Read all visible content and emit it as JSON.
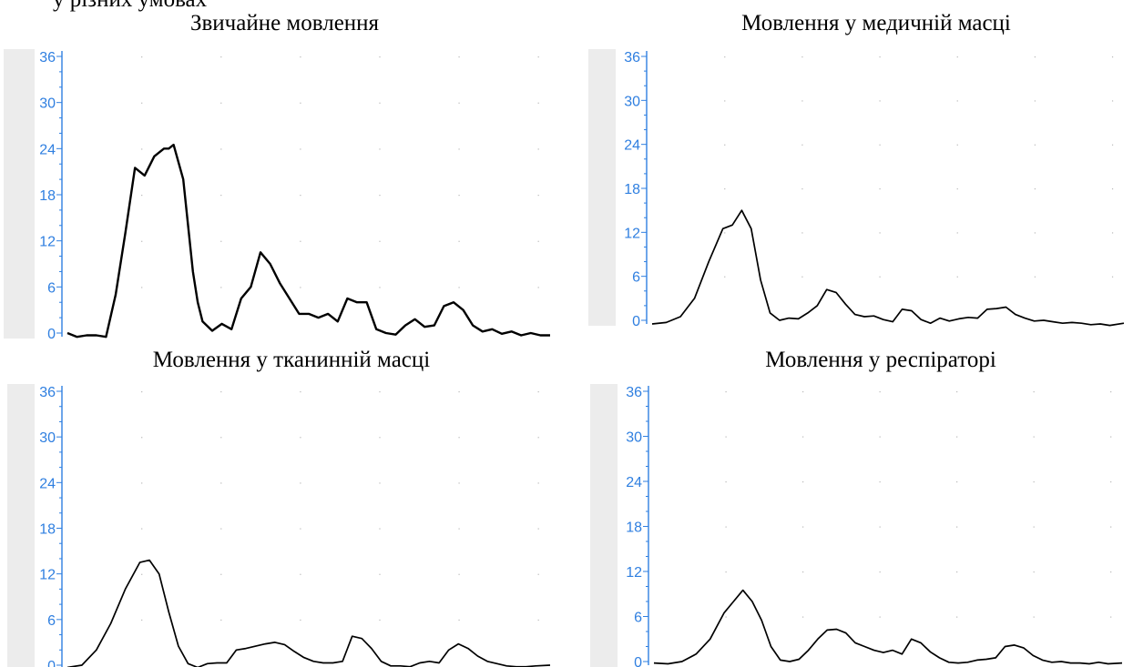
{
  "page": {
    "caption": "у різних умовах"
  },
  "colors": {
    "axis": "#2f7fe0",
    "gutter": "#ececec",
    "grid_dot": "#b8b8b8",
    "line": "#000000"
  },
  "chart_data": [
    {
      "type": "line",
      "title": "Звичайне мовлення",
      "xlabel": "",
      "ylabel": "",
      "ylim": [
        0,
        36
      ],
      "yticks": [
        0,
        6,
        12,
        18,
        24,
        30,
        36
      ],
      "grid": true,
      "x": [
        0,
        2,
        4,
        6,
        8,
        10,
        12,
        14,
        16,
        18,
        20,
        21,
        22,
        24,
        26,
        27,
        28,
        30,
        32,
        34,
        36,
        38,
        40,
        42,
        44,
        46,
        48,
        50,
        52,
        54,
        56,
        58,
        60,
        62,
        64,
        66,
        68,
        70,
        72,
        74,
        76,
        78,
        80,
        82,
        84,
        86,
        88,
        90,
        92,
        94,
        96,
        98,
        100
      ],
      "series": [
        {
          "values": [
            0,
            -0.5,
            -0.3,
            -0.3,
            -0.5,
            5,
            13,
            21.5,
            20.5,
            23,
            24,
            24,
            24.5,
            20,
            8,
            4,
            1.5,
            0.3,
            1.2,
            0.5,
            4.5,
            6,
            10.5,
            9,
            6.5,
            4.5,
            2.5,
            2.5,
            2,
            2.5,
            1.5,
            4.5,
            4,
            4,
            0.5,
            0,
            -0.2,
            1,
            1.8,
            0.8,
            1,
            3.5,
            4,
            3,
            1,
            0.2,
            0.5,
            -0.1,
            0.2,
            -0.3,
            0,
            -0.3,
            -0.3
          ]
        }
      ]
    },
    {
      "type": "line",
      "title": "Мовлення у медичній масці",
      "xlabel": "",
      "ylabel": "",
      "ylim": [
        0,
        36
      ],
      "yticks": [
        0,
        6,
        12,
        18,
        24,
        30,
        36
      ],
      "grid": true,
      "x": [
        0,
        3,
        6,
        9,
        12,
        15,
        17,
        19,
        21,
        23,
        25,
        27,
        29,
        31,
        33,
        35,
        37,
        39,
        41,
        43,
        45,
        47,
        49,
        51,
        53,
        55,
        57,
        59,
        61,
        63,
        65,
        67,
        69,
        71,
        73,
        75,
        77,
        79,
        81,
        83,
        85,
        87,
        89,
        91,
        93,
        95,
        97,
        100
      ],
      "series": [
        {
          "values": [
            -0.5,
            -0.3,
            0.5,
            3,
            8,
            12.5,
            13,
            15,
            12.5,
            5.5,
            1,
            0,
            0.3,
            0.2,
            1,
            2,
            4.2,
            3.8,
            2.2,
            0.8,
            0.5,
            0.6,
            0.1,
            -0.2,
            1.5,
            1.3,
            0.1,
            -0.4,
            0.3,
            -0.1,
            0.2,
            0.4,
            0.3,
            1.5,
            1.6,
            1.8,
            0.8,
            0.3,
            -0.1,
            0,
            -0.2,
            -0.4,
            -0.3,
            -0.4,
            -0.6,
            -0.5,
            -0.7,
            -0.4
          ]
        }
      ]
    },
    {
      "type": "line",
      "title": "Мовлення у тканинній масці",
      "xlabel": "",
      "ylabel": "",
      "ylim": [
        0,
        36
      ],
      "yticks": [
        0,
        6,
        12,
        18,
        24,
        30,
        36
      ],
      "grid": true,
      "x": [
        0,
        3,
        6,
        9,
        12,
        15,
        17,
        19,
        21,
        23,
        25,
        27,
        29,
        31,
        33,
        35,
        37,
        39,
        41,
        43,
        45,
        47,
        49,
        51,
        53,
        55,
        57,
        59,
        61,
        63,
        65,
        67,
        69,
        71,
        73,
        75,
        77,
        79,
        81,
        83,
        85,
        87,
        89,
        91,
        93,
        95,
        97,
        100
      ],
      "series": [
        {
          "values": [
            -0.3,
            0,
            2,
            5.5,
            10,
            13.5,
            13.8,
            12,
            7,
            2.5,
            0.2,
            -0.3,
            0.2,
            0.3,
            0.3,
            2,
            2.2,
            2.5,
            2.8,
            3,
            2.7,
            1.8,
            1,
            0.5,
            0.3,
            0.3,
            0.5,
            3.8,
            3.5,
            2.2,
            0.5,
            -0.1,
            -0.1,
            -0.2,
            0.3,
            0.5,
            0.3,
            2,
            2.8,
            2.2,
            1.2,
            0.5,
            0.2,
            -0.1,
            -0.2,
            -0.2,
            -0.1,
            0
          ]
        }
      ]
    },
    {
      "type": "line",
      "title": "Мовлення у респіраторі",
      "xlabel": "",
      "ylabel": "",
      "ylim": [
        0,
        36
      ],
      "yticks": [
        0,
        6,
        12,
        18,
        24,
        30,
        36
      ],
      "grid": true,
      "x": [
        0,
        3,
        6,
        9,
        12,
        15,
        17,
        19,
        21,
        23,
        25,
        27,
        29,
        31,
        33,
        35,
        37,
        39,
        41,
        43,
        45,
        47,
        49,
        51,
        53,
        55,
        57,
        59,
        61,
        63,
        65,
        67,
        69,
        71,
        73,
        75,
        77,
        79,
        81,
        83,
        85,
        87,
        89,
        91,
        93,
        95,
        97,
        100
      ],
      "series": [
        {
          "values": [
            -0.2,
            -0.3,
            0,
            1,
            3,
            6.5,
            8,
            9.5,
            8,
            5.5,
            2,
            0.2,
            0,
            0.3,
            1.5,
            3,
            4.2,
            4.3,
            3.8,
            2.5,
            2,
            1.5,
            1.2,
            1.5,
            1,
            3,
            2.5,
            1.3,
            0.5,
            -0.1,
            -0.2,
            -0.1,
            0.2,
            0.3,
            0.5,
            2,
            2.2,
            1.8,
            0.8,
            0.2,
            -0.1,
            0,
            -0.2,
            -0.2,
            -0.3,
            -0.1,
            -0.3,
            -0.2
          ]
        }
      ]
    }
  ]
}
